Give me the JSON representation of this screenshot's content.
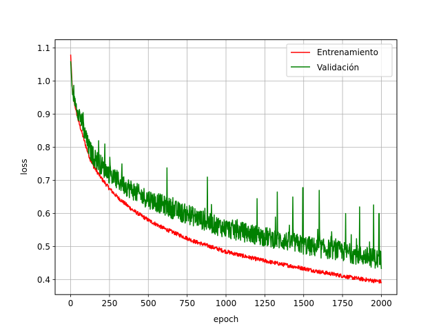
{
  "chart_data": {
    "type": "line",
    "title": "",
    "xlabel": "epoch",
    "ylabel": "loss",
    "xlim": [
      -100,
      2100
    ],
    "ylim": [
      0.355,
      1.125
    ],
    "xticks": [
      0,
      250,
      500,
      750,
      1000,
      1250,
      1500,
      1750,
      2000
    ],
    "xtick_labels": [
      "0",
      "250",
      "500",
      "750",
      "1000",
      "1250",
      "1500",
      "1750",
      "2000"
    ],
    "yticks": [
      0.4,
      0.5,
      0.6,
      0.7,
      0.8,
      0.9,
      1.0,
      1.1
    ],
    "ytick_labels": [
      "0.4",
      "0.5",
      "0.6",
      "0.7",
      "0.8",
      "0.9",
      "1.0",
      "1.1"
    ],
    "grid": true,
    "legend_position": "top-right",
    "series": [
      {
        "name": "Entrenamiento",
        "color": "#ff0000",
        "points": [
          [
            0,
            1.08
          ],
          [
            10,
            0.98
          ],
          [
            25,
            0.93
          ],
          [
            50,
            0.88
          ],
          [
            75,
            0.84
          ],
          [
            100,
            0.8
          ],
          [
            125,
            0.765
          ],
          [
            150,
            0.74
          ],
          [
            200,
            0.705
          ],
          [
            250,
            0.675
          ],
          [
            300,
            0.65
          ],
          [
            350,
            0.63
          ],
          [
            400,
            0.61
          ],
          [
            450,
            0.595
          ],
          [
            500,
            0.58
          ],
          [
            600,
            0.555
          ],
          [
            700,
            0.535
          ],
          [
            800,
            0.515
          ],
          [
            900,
            0.5
          ],
          [
            1000,
            0.485
          ],
          [
            1100,
            0.473
          ],
          [
            1200,
            0.462
          ],
          [
            1300,
            0.452
          ],
          [
            1400,
            0.443
          ],
          [
            1500,
            0.434
          ],
          [
            1600,
            0.424
          ],
          [
            1700,
            0.416
          ],
          [
            1800,
            0.407
          ],
          [
            1900,
            0.4
          ],
          [
            2000,
            0.394
          ]
        ]
      },
      {
        "name": "Validación",
        "color": "#008000",
        "points": [
          [
            0,
            1.06
          ],
          [
            10,
            0.97
          ],
          [
            25,
            0.94
          ],
          [
            50,
            0.91
          ],
          [
            75,
            0.87
          ],
          [
            100,
            0.82
          ],
          [
            125,
            0.79
          ],
          [
            150,
            0.77
          ],
          [
            200,
            0.745
          ],
          [
            250,
            0.72
          ],
          [
            300,
            0.7
          ],
          [
            350,
            0.685
          ],
          [
            400,
            0.67
          ],
          [
            450,
            0.655
          ],
          [
            500,
            0.645
          ],
          [
            600,
            0.625
          ],
          [
            700,
            0.605
          ],
          [
            800,
            0.59
          ],
          [
            900,
            0.57
          ],
          [
            1000,
            0.555
          ],
          [
            1100,
            0.545
          ],
          [
            1200,
            0.535
          ],
          [
            1300,
            0.525
          ],
          [
            1400,
            0.515
          ],
          [
            1500,
            0.505
          ],
          [
            1600,
            0.495
          ],
          [
            1700,
            0.49
          ],
          [
            1800,
            0.48
          ],
          [
            1900,
            0.47
          ],
          [
            2000,
            0.46
          ]
        ],
        "spikes": [
          [
            60,
            0.9
          ],
          [
            80,
            0.905
          ],
          [
            100,
            0.85
          ],
          [
            180,
            0.82
          ],
          [
            220,
            0.81
          ],
          [
            330,
            0.75
          ],
          [
            620,
            0.738
          ],
          [
            880,
            0.71
          ],
          [
            1200,
            0.645
          ],
          [
            1330,
            0.665
          ],
          [
            1430,
            0.65
          ],
          [
            1495,
            0.678
          ],
          [
            1600,
            0.67
          ],
          [
            1770,
            0.6
          ],
          [
            1860,
            0.62
          ],
          [
            1950,
            0.626
          ],
          [
            1985,
            0.6
          ]
        ]
      }
    ]
  }
}
